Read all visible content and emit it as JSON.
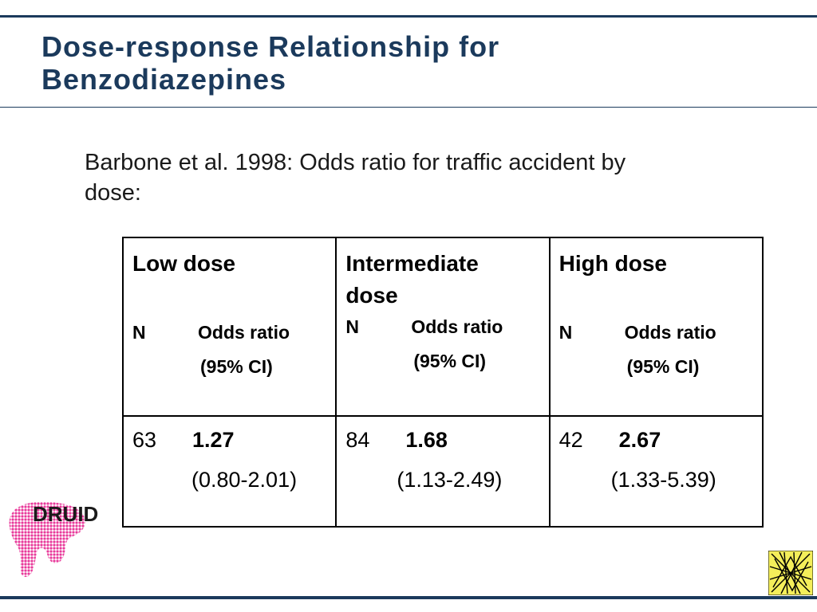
{
  "slide": {
    "title_line1": "Dose-response Relationship for",
    "title_line2": "Benzodiazepines",
    "subtitle_line1": "Barbone et al. 1998: Odds ratio for traffic accident by",
    "subtitle_line2": "dose:"
  },
  "table": {
    "columns": [
      {
        "title_line1": "Low dose",
        "title_line2": "",
        "n_label": "N",
        "or_label": "Odds ratio",
        "ci_label": "(95% CI)",
        "n": "63",
        "odds_ratio": "1.27",
        "ci": "(0.80-2.01)"
      },
      {
        "title_line1": "Intermediate",
        "title_line2": "dose",
        "n_label": "N",
        "or_label": "Odds ratio",
        "ci_label": "(95% CI)",
        "n": "84",
        "odds_ratio": "1.68",
        "ci": "(1.13-2.49)"
      },
      {
        "title_line1": "High dose",
        "title_line2": "",
        "n_label": "N",
        "or_label": "Odds ratio",
        "ci_label": "(95% CI)",
        "n": "42",
        "odds_ratio": "2.67",
        "ci": "(1.33-5.39)"
      }
    ]
  },
  "logos": {
    "left_logo_text": "DRUID",
    "left_logo_color": "#e8399a",
    "right_logo_color": "#f4ee5a"
  },
  "colors": {
    "title": "#1b3a5c",
    "rules": "#1b3a5c"
  }
}
